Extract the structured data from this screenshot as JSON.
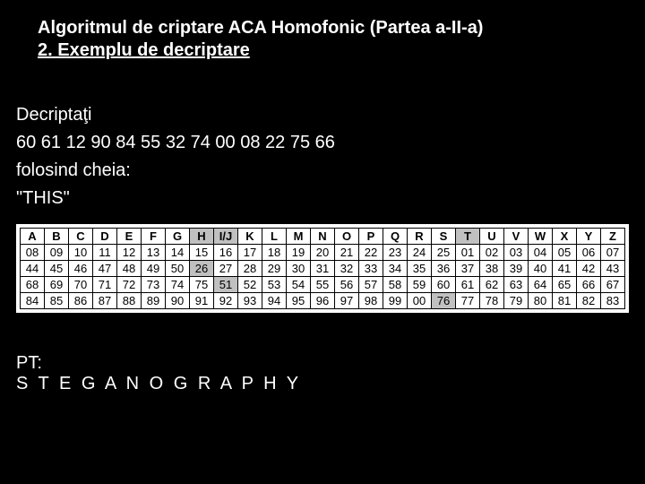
{
  "title": "Algoritmul de criptare ACA Homofonic (Partea a-II-a)",
  "subtitle": "2. Exemplu de decriptare",
  "decrypt_label": "Decriptaţi",
  "cipher_numbers": "60 61 12 90 84 55 32 74 00 08 22 75 66",
  "key_label": "folosind cheia:",
  "key_value": "\"THIS\"",
  "pt_label": "PT:",
  "pt_value": "S T E G A N O G R A P H Y",
  "table": {
    "headers": [
      "A",
      "B",
      "C",
      "D",
      "E",
      "F",
      "G",
      "H",
      "I/J",
      "K",
      "L",
      "M",
      "N",
      "O",
      "P",
      "Q",
      "R",
      "S",
      "T",
      "U",
      "V",
      "W",
      "X",
      "Y",
      "Z"
    ],
    "rows": [
      [
        "08",
        "09",
        "10",
        "11",
        "12",
        "13",
        "14",
        "15",
        "16",
        "17",
        "18",
        "19",
        "20",
        "21",
        "22",
        "23",
        "24",
        "25",
        "01",
        "02",
        "03",
        "04",
        "05",
        "06",
        "07"
      ],
      [
        "44",
        "45",
        "46",
        "47",
        "48",
        "49",
        "50",
        "26",
        "27",
        "28",
        "29",
        "30",
        "31",
        "32",
        "33",
        "34",
        "35",
        "36",
        "37",
        "38",
        "39",
        "40",
        "41",
        "42",
        "43"
      ],
      [
        "68",
        "69",
        "70",
        "71",
        "72",
        "73",
        "74",
        "75",
        "51",
        "52",
        "53",
        "54",
        "55",
        "56",
        "57",
        "58",
        "59",
        "60",
        "61",
        "62",
        "63",
        "64",
        "65",
        "66",
        "67"
      ],
      [
        "84",
        "85",
        "86",
        "87",
        "88",
        "89",
        "90",
        "91",
        "92",
        "93",
        "94",
        "95",
        "96",
        "97",
        "98",
        "99",
        "00",
        "76",
        "77",
        "78",
        "79",
        "80",
        "81",
        "82",
        "83"
      ]
    ],
    "highlight_header_cols": [
      7,
      8,
      18
    ],
    "highlight_cells": [
      [
        1,
        7
      ],
      [
        2,
        8
      ],
      [
        3,
        17
      ]
    ],
    "colors": {
      "background": "#000000",
      "text": "#ffffff",
      "table_bg": "#ffffff",
      "table_text": "#000000",
      "highlight_bg": "#c0c0c0",
      "border": "#000000"
    },
    "fontsize_body": 20,
    "fontsize_table": 13
  }
}
